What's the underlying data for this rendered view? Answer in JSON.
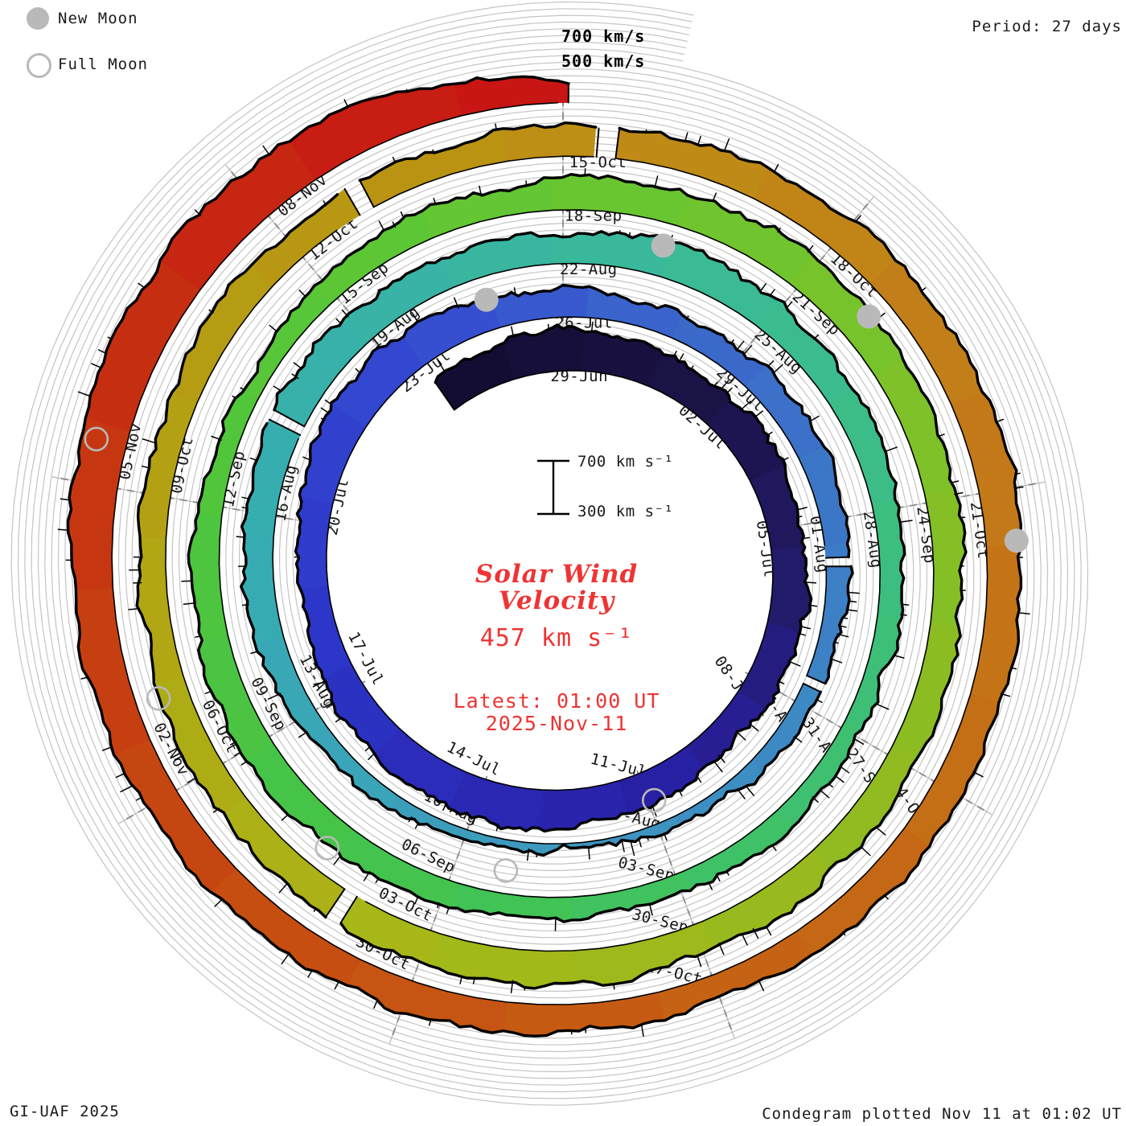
{
  "legend": {
    "new_moon_label": "New Moon",
    "full_moon_label": "Full Moon"
  },
  "header": {
    "period_label": "Period: 27 days"
  },
  "outer_scale": {
    "top_label": "700 km/s",
    "bottom_label": "500 km/s"
  },
  "center": {
    "title_line1": "Solar Wind",
    "title_line2": "Velocity",
    "current_value": "457 km s⁻¹",
    "latest_line1": "Latest: 01:00 UT",
    "latest_line2": "2025-Nov-11",
    "scale_top_label": "700 km s⁻¹",
    "scale_bottom_label": "300 km s⁻¹",
    "accent_color": "#ee3434"
  },
  "footer": {
    "left": "GI-UAF 2025",
    "right": "Condegram plotted Nov 11 at 01:02 UT"
  },
  "chart_data": {
    "type": "area",
    "style": "polar-spiral-condegram",
    "title": "Solar Wind Velocity",
    "period_days": 27,
    "rotation_direction": "clockwise",
    "day0_date": "2025-06-29",
    "latest_date": "2025-11-11",
    "latest_time_ut": "01:00",
    "latest_velocity_km_s": 457,
    "velocity_axis_range_km_s": [
      300,
      700
    ],
    "grid_step_km_s": 50,
    "tick_step_km_s": 100,
    "axes": [
      {
        "bearing_deg": 0,
        "label_rotation_deg": 0,
        "dates": [
          "29-Jun",
          "26-Jul",
          "22-Aug",
          "18-Sep",
          "15-Oct"
        ]
      },
      {
        "bearing_deg": 40,
        "label_rotation_deg": 42,
        "dates": [
          "02-Jul",
          "29-Jul",
          "25-Aug",
          "21-Sep",
          "18-Oct"
        ]
      },
      {
        "bearing_deg": 80,
        "label_rotation_deg": 82,
        "dates": [
          "05-Jul",
          "01-Aug",
          "28-Aug",
          "24-Sep",
          "21-Oct"
        ]
      },
      {
        "bearing_deg": 120,
        "label_rotation_deg": 55,
        "dates": [
          "08-Jul",
          "04-Aug",
          "31-Aug",
          "27-Sep",
          "24-Oct"
        ]
      },
      {
        "bearing_deg": 160,
        "label_rotation_deg": 14,
        "dates": [
          "11-Jul",
          "07-Aug",
          "03-Sep",
          "30-Sep",
          "27-Oct"
        ]
      },
      {
        "bearing_deg": 200,
        "label_rotation_deg": 26,
        "dates": [
          "14-Jul",
          "10-Aug",
          "06-Sep",
          "03-Oct",
          "30-Oct"
        ]
      },
      {
        "bearing_deg": 240,
        "label_rotation_deg": 62,
        "dates": [
          "17-Jul",
          "13-Aug",
          "09-Sep",
          "06-Oct",
          "02-Nov"
        ]
      },
      {
        "bearing_deg": 280,
        "label_rotation_deg": -78,
        "dates": [
          "20-Jul",
          "16-Aug",
          "12-Sep",
          "09-Oct",
          "05-Nov"
        ]
      },
      {
        "bearing_deg": 320,
        "label_rotation_deg": -38,
        "dates": [
          "23-Jul",
          "19-Aug",
          "15-Sep",
          "12-Oct",
          "08-Nov"
        ]
      }
    ],
    "velocity_profile_day_kms": [
      [
        -2.6,
        560
      ],
      [
        0,
        615
      ],
      [
        1.5,
        585
      ],
      [
        3,
        555
      ],
      [
        4.5,
        590
      ],
      [
        6,
        545
      ],
      [
        7.5,
        570
      ],
      [
        9,
        540
      ],
      [
        10.5,
        505
      ],
      [
        12,
        545
      ],
      [
        13.5,
        575
      ],
      [
        15,
        605
      ],
      [
        16.5,
        585
      ],
      [
        18,
        555
      ],
      [
        19.5,
        520
      ],
      [
        21,
        545
      ],
      [
        22.5,
        585
      ],
      [
        24,
        605
      ],
      [
        25.5,
        555
      ],
      [
        27,
        505
      ],
      [
        28.5,
        475
      ],
      [
        30,
        500
      ],
      [
        31.5,
        520
      ],
      [
        33,
        495
      ],
      [
        34.5,
        465
      ],
      [
        36,
        430
      ],
      [
        37.5,
        395
      ],
      [
        39,
        365
      ],
      [
        40.5,
        345
      ],
      [
        42,
        375
      ],
      [
        43.5,
        430
      ],
      [
        45,
        470
      ],
      [
        46.5,
        500
      ],
      [
        48,
        535
      ],
      [
        49.5,
        560
      ],
      [
        51,
        545
      ],
      [
        52.5,
        520
      ],
      [
        54,
        535
      ],
      [
        55.5,
        560
      ],
      [
        57,
        540
      ],
      [
        58.5,
        505
      ],
      [
        60,
        475
      ],
      [
        61.5,
        455
      ],
      [
        63,
        435
      ],
      [
        64.5,
        455
      ],
      [
        66,
        440
      ],
      [
        67.5,
        465
      ],
      [
        69,
        490
      ],
      [
        70.5,
        520
      ],
      [
        72,
        540
      ],
      [
        73.5,
        520
      ],
      [
        75,
        480
      ],
      [
        76.5,
        430
      ],
      [
        78,
        475
      ],
      [
        79.5,
        510
      ],
      [
        81,
        530
      ],
      [
        82.5,
        555
      ],
      [
        84,
        575
      ],
      [
        85.5,
        560
      ],
      [
        87,
        535
      ],
      [
        88.5,
        510
      ],
      [
        90,
        490
      ],
      [
        91.5,
        515
      ],
      [
        93,
        540
      ],
      [
        94.5,
        555
      ],
      [
        96,
        560
      ],
      [
        97.5,
        545
      ],
      [
        99,
        520
      ],
      [
        100.5,
        495
      ],
      [
        102,
        510
      ],
      [
        103.5,
        520
      ],
      [
        105,
        510
      ],
      [
        106.5,
        520
      ],
      [
        108,
        528
      ],
      [
        109.5,
        535
      ],
      [
        111,
        550
      ],
      [
        112.5,
        565
      ],
      [
        114,
        575
      ],
      [
        115.5,
        555
      ],
      [
        117,
        535
      ],
      [
        118.5,
        510
      ],
      [
        120,
        490
      ],
      [
        121.5,
        505
      ],
      [
        123,
        525
      ],
      [
        124.5,
        545
      ],
      [
        126,
        560
      ],
      [
        127.5,
        585
      ],
      [
        129,
        625
      ],
      [
        130.5,
        655
      ],
      [
        132,
        670
      ],
      [
        133,
        640
      ],
      [
        134,
        560
      ],
      [
        134.6,
        500
      ],
      [
        135.05,
        457
      ]
    ],
    "data_gaps_day": [
      [
        33.6,
        33.74
      ],
      [
        35.55,
        35.69
      ],
      [
        49.25,
        49.39
      ],
      [
        96.9,
        97.06
      ],
      [
        105.75,
        105.92
      ],
      [
        108.35,
        108.55
      ]
    ],
    "moons": {
      "marker_color": "#b9b9b9",
      "new_moon_days": [
        25.8,
        55.3,
        84.8,
        114.5
      ],
      "new_moon_dates": [
        "2025-07-24",
        "2025-08-23",
        "2025-09-21",
        "2025-10-21"
      ],
      "full_moon_days": [
        11.9,
        41.3,
        70.5,
        99.9,
        129.4
      ],
      "full_moon_dates": [
        "2025-07-10",
        "2025-08-09",
        "2025-09-07",
        "2025-10-07",
        "2025-11-05"
      ]
    },
    "color_stops_day_hex": [
      [
        -3,
        "#120c2e"
      ],
      [
        3,
        "#1a1348"
      ],
      [
        7,
        "#221b68"
      ],
      [
        11,
        "#281fa0"
      ],
      [
        15,
        "#2a28b4"
      ],
      [
        19,
        "#2c35c8"
      ],
      [
        24,
        "#3448d2"
      ],
      [
        28,
        "#3a62cc"
      ],
      [
        32,
        "#3c74c8"
      ],
      [
        36,
        "#3d87c4"
      ],
      [
        40,
        "#3e95c0"
      ],
      [
        44,
        "#3aa4b8"
      ],
      [
        48,
        "#36adb0"
      ],
      [
        52,
        "#38b4a4"
      ],
      [
        56,
        "#3aba96"
      ],
      [
        60,
        "#3cbe84"
      ],
      [
        64,
        "#3ec06e"
      ],
      [
        68,
        "#41c356"
      ],
      [
        72,
        "#48c444"
      ],
      [
        76,
        "#52c63a"
      ],
      [
        80,
        "#62c632"
      ],
      [
        84,
        "#74c42c"
      ],
      [
        88,
        "#86be24"
      ],
      [
        92,
        "#97ba1e"
      ],
      [
        96,
        "#a6b818"
      ],
      [
        100,
        "#b0a914"
      ],
      [
        104,
        "#b69b12"
      ],
      [
        108,
        "#bd8f14"
      ],
      [
        112,
        "#c28019"
      ],
      [
        116,
        "#c47117"
      ],
      [
        120,
        "#c56113"
      ],
      [
        124,
        "#c64f11"
      ],
      [
        128,
        "#c63c11"
      ],
      [
        131,
        "#c62a12"
      ],
      [
        135,
        "#c81414"
      ]
    ],
    "grid_color": "#c4c4c4",
    "axis_color": "#b6b6b6",
    "tick_color": "#8a8a8a",
    "edge_color": "#000000",
    "label_color": "#161616"
  }
}
